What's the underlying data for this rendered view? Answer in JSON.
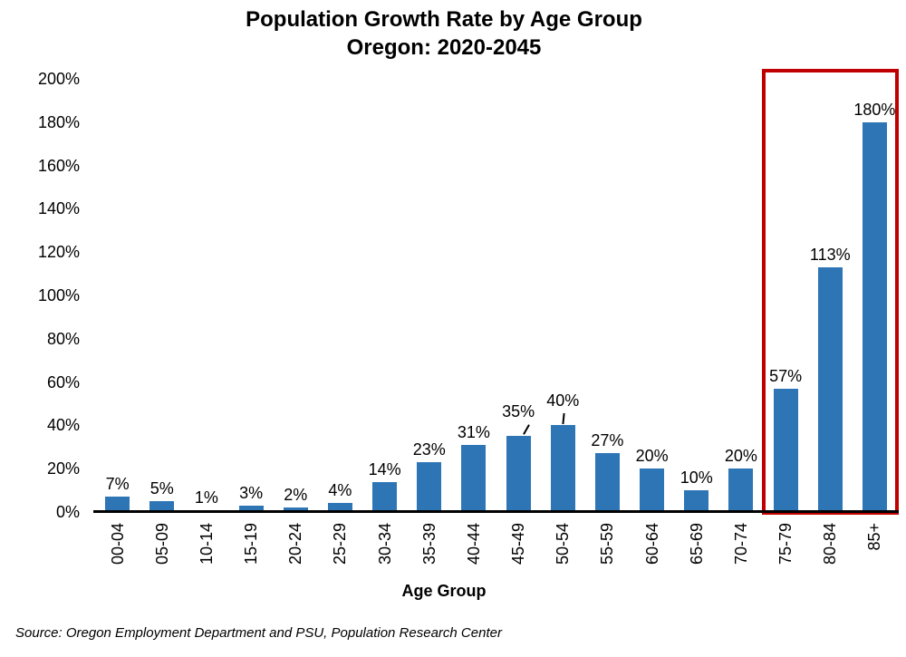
{
  "title": {
    "line1": "Population Growth Rate by Age Group",
    "line2": "Oregon: 2020-2045"
  },
  "chart_data": {
    "type": "bar",
    "title": "Population Growth Rate by Age Group Oregon: 2020-2045",
    "xlabel": "Age Group",
    "ylabel": "",
    "ylim": [
      0,
      200
    ],
    "y_tick_step": 20,
    "y_tick_labels": [
      "0%",
      "20%",
      "40%",
      "60%",
      "80%",
      "100%",
      "120%",
      "140%",
      "160%",
      "180%",
      "200%"
    ],
    "grid": false,
    "legend_position": "none",
    "bar_color": "#2E75B6",
    "categories": [
      "00-04",
      "05-09",
      "10-14",
      "15-19",
      "20-24",
      "25-29",
      "30-34",
      "35-39",
      "40-44",
      "45-49",
      "50-54",
      "55-59",
      "60-64",
      "65-69",
      "70-74",
      "75-79",
      "80-84",
      "85+"
    ],
    "values": [
      7,
      5,
      1,
      3,
      2,
      4,
      14,
      23,
      31,
      35,
      40,
      27,
      20,
      10,
      20,
      57,
      113,
      180
    ],
    "data_labels": [
      "7%",
      "5%",
      "1%",
      "3%",
      "2%",
      "4%",
      "14%",
      "23%",
      "31%",
      "35%",
      "40%",
      "27%",
      "20%",
      "10%",
      "20%",
      "57%",
      "113%",
      "180%"
    ],
    "callout_label_categories": [
      "45-49",
      "50-54"
    ],
    "highlight_box": {
      "categories": [
        "75-79",
        "80-84",
        "85+"
      ],
      "color": "#C00000"
    }
  },
  "source": "Source: Oregon Employment Department and PSU, Population Research Center"
}
